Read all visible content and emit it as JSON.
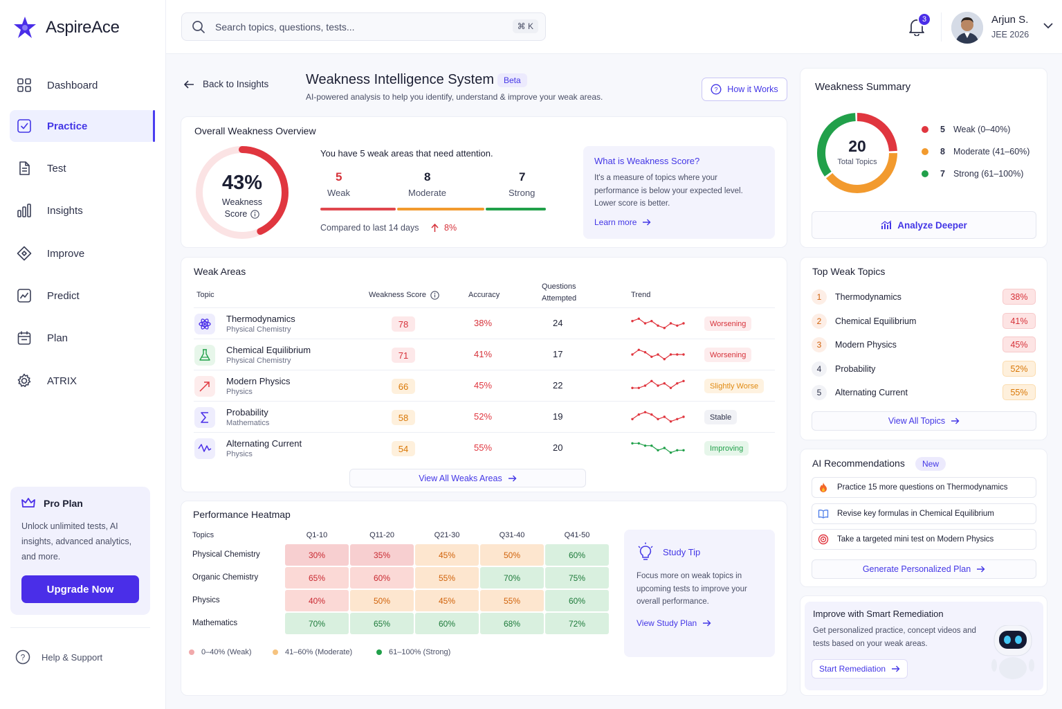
{
  "app": {
    "name": "AspireAce"
  },
  "sidebar": {
    "items": [
      {
        "label": "Dashboard",
        "icon": "grid-icon"
      },
      {
        "label": "Practice",
        "icon": "check-square-icon",
        "active": true
      },
      {
        "label": "Test",
        "icon": "document-icon"
      },
      {
        "label": "Insights",
        "icon": "bar-chart-icon"
      },
      {
        "label": "Improve",
        "icon": "diamond-icon"
      },
      {
        "label": "Predict",
        "icon": "trend-icon"
      },
      {
        "label": "Plan",
        "icon": "calendar-icon"
      },
      {
        "label": "ATRIX",
        "icon": "gear-icon"
      }
    ],
    "pro": {
      "title": "Pro Plan",
      "desc": "Unlock unlimited tests, AI insights, advanced analytics, and more.",
      "button": "Upgrade Now"
    },
    "help": "Help & Support"
  },
  "header": {
    "search_placeholder": "Search topics, questions, tests...",
    "shortcut": "⌘ K",
    "notifications": "3",
    "user": {
      "name": "Arjun S.",
      "sub": "JEE 2026"
    }
  },
  "page": {
    "back": "Back to Insights",
    "title": "Weakness Intelligence System",
    "badge": "Beta",
    "subtitle": "AI-powered analysis to help you identify, understand & improve your weak areas.",
    "how": "How it Works"
  },
  "overview": {
    "title": "Overall Weakness Overview",
    "score": "43%",
    "score_value": 43,
    "score_label1": "Weakness",
    "score_label2": "Score",
    "headline": "You have 5 weak areas that need attention.",
    "stats": [
      {
        "num": "5",
        "label": "Weak",
        "color": "#d6323a"
      },
      {
        "num": "8",
        "label": "Moderate",
        "color": "#1c1f33"
      },
      {
        "num": "7",
        "label": "Strong",
        "color": "#1c1f33"
      }
    ],
    "compared": "Compared to last 14 days",
    "change": "8%",
    "info": {
      "title": "What is Weakness Score?",
      "text": "It's a measure of topics where your performance is below your expected level. Lower score is better.",
      "link": "Learn more"
    }
  },
  "weak_areas": {
    "title": "Weak Areas",
    "headers": {
      "topic": "Topic",
      "score": "Weakness Score",
      "accuracy": "Accuracy",
      "q1": "Questions",
      "q2": "Attempted",
      "trend": "Trend"
    },
    "rows": [
      {
        "name": "Thermodynamics",
        "sub": "Physical Chemistry",
        "score": "78",
        "accuracy": "38%",
        "attempted": "24",
        "status": "Worsening",
        "icon": "atom-icon",
        "tone": "red",
        "trend": [
          5,
          6,
          4,
          5,
          3,
          2,
          4,
          3,
          4
        ]
      },
      {
        "name": "Chemical Equilibrium",
        "sub": "Physical Chemistry",
        "score": "71",
        "accuracy": "41%",
        "attempted": "17",
        "status": "Worsening",
        "icon": "flask-icon",
        "tone": "red",
        "trend": [
          4,
          6,
          5,
          3,
          4,
          2,
          4,
          4,
          4
        ]
      },
      {
        "name": "Modern Physics",
        "sub": "Physics",
        "score": "66",
        "accuracy": "45%",
        "attempted": "22",
        "status": "Slightly Worse",
        "icon": "arrow-diagonal-icon",
        "tone": "orange",
        "trend": [
          3,
          3,
          4,
          6,
          4,
          5,
          3,
          5,
          6
        ]
      },
      {
        "name": "Probability",
        "sub": "Mathematics",
        "score": "58",
        "accuracy": "52%",
        "attempted": "19",
        "status": "Stable",
        "icon": "sigma-icon",
        "tone": "orange",
        "trend": [
          3,
          5,
          6,
          5,
          3,
          4,
          2,
          3,
          4
        ]
      },
      {
        "name": "Alternating Current",
        "sub": "Physics",
        "score": "54",
        "accuracy": "55%",
        "attempted": "20",
        "status": "Improving",
        "icon": "wave-icon",
        "tone": "green",
        "trend": [
          6,
          6,
          5,
          5,
          3,
          4,
          2,
          3,
          3
        ]
      }
    ],
    "view_all": "View All Weaks Areas"
  },
  "heatmap": {
    "title": "Performance Heatmap",
    "topics_label": "Topics",
    "columns": [
      "Q1-10",
      "Q11-20",
      "Q21-30",
      "Q31-40",
      "Q41-50"
    ],
    "rows": [
      {
        "topic": "Physical Chemistry",
        "values": [
          "30%",
          "35%",
          "45%",
          "50%",
          "60%"
        ]
      },
      {
        "topic": "Organic Chemistry",
        "values": [
          "65%",
          "60%",
          "55%",
          "70%",
          "75%"
        ]
      },
      {
        "topic": "Physics",
        "values": [
          "40%",
          "50%",
          "45%",
          "55%",
          "60%"
        ]
      },
      {
        "topic": "Mathematics",
        "values": [
          "70%",
          "65%",
          "60%",
          "68%",
          "72%"
        ]
      }
    ],
    "legend": [
      "0–40% (Weak)",
      "41–60% (Moderate)",
      "61–100% (Strong)"
    ],
    "tip": {
      "title": "Study Tip",
      "text": "Focus more on weak topics in upcoming tests to improve your overall performance.",
      "link": "View Study Plan"
    }
  },
  "summary": {
    "title": "Weakness Summary",
    "total": "20",
    "total_label": "Total Topics",
    "items": [
      {
        "count": "5",
        "label": "Weak (0–40%)",
        "color": "#e0363f",
        "value": 5
      },
      {
        "count": "8",
        "label": "Moderate (41–60%)",
        "color": "#f29a2e",
        "value": 8
      },
      {
        "count": "7",
        "label": "Strong (61–100%)",
        "color": "#21a04a",
        "value": 7
      }
    ],
    "button": "Analyze Deeper"
  },
  "top_weak": {
    "title": "Top Weak Topics",
    "items": [
      {
        "rank": "1",
        "name": "Thermodynamics",
        "pct": "38%",
        "tone": "red"
      },
      {
        "rank": "2",
        "name": "Chemical Equilibrium",
        "pct": "41%",
        "tone": "red"
      },
      {
        "rank": "3",
        "name": "Modern Physics",
        "pct": "45%",
        "tone": "red"
      },
      {
        "rank": "4",
        "name": "Probability",
        "pct": "52%",
        "tone": "orange"
      },
      {
        "rank": "5",
        "name": "Alternating Current",
        "pct": "55%",
        "tone": "orange"
      }
    ],
    "view_all": "View All Topics"
  },
  "recommendations": {
    "title": "AI Recommendations",
    "badge": "New",
    "items": [
      {
        "text": "Practice 15 more questions on Thermodynamics",
        "icon": "fire-icon"
      },
      {
        "text": "Revise key formulas in Chemical Equilibrium",
        "icon": "book-icon"
      },
      {
        "text": "Take a targeted mini test on Modern Physics",
        "icon": "target-icon"
      }
    ],
    "button": "Generate Personalized Plan"
  },
  "remediation": {
    "title": "Improve with Smart Remediation",
    "text": "Get personalized practice, concept videos and tests based on your weak areas.",
    "button": "Start Remediation"
  }
}
